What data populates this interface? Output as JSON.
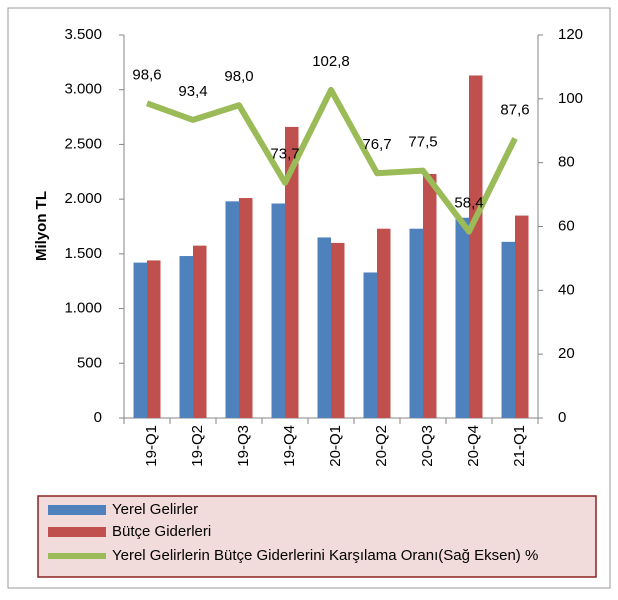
{
  "chart_data": {
    "type": "bar-line",
    "ylabel": "Milyon TL",
    "categories": [
      "19-Q1",
      "19-Q2",
      "19-Q3",
      "19-Q4",
      "20-Q1",
      "20-Q2",
      "20-Q3",
      "20-Q4",
      "21-Q1"
    ],
    "series": [
      {
        "name": "Yerel Gelirler",
        "type": "bar",
        "color": "#4f81bd",
        "values": [
          1420,
          1480,
          1980,
          1960,
          1650,
          1330,
          1730,
          1830,
          1610
        ]
      },
      {
        "name": "Bütçe Giderleri",
        "type": "bar",
        "color": "#c0504d",
        "values": [
          1440,
          1575,
          2010,
          2660,
          1600,
          1730,
          2230,
          3130,
          1850
        ]
      },
      {
        "name": "Yerel Gelirlerin Bütçe Giderlerini Karşılama Oranı(Sağ Eksen) %",
        "type": "line",
        "axis": "y2",
        "color": "#9bbb59",
        "values": [
          98.6,
          93.4,
          98.0,
          73.7,
          102.8,
          76.7,
          77.5,
          58.4,
          87.6
        ],
        "value_labels": [
          "98,6",
          "93,4",
          "98,0",
          "73,7",
          "102,8",
          "76,7",
          "77,5",
          "58,4",
          "87,6"
        ]
      }
    ],
    "ylim": [
      0,
      3500
    ],
    "yticks": [
      0,
      500,
      {
        "value": 1000,
        "label": "1.000"
      },
      {
        "value": 1500,
        "label": "1.500"
      },
      {
        "value": 2000,
        "label": "2.000"
      },
      {
        "value": 2500,
        "label": "2.500"
      },
      {
        "value": 3000,
        "label": "3.000"
      },
      {
        "value": 3500,
        "label": "3.500"
      }
    ],
    "y2lim": [
      0,
      120
    ],
    "y2ticks": [
      0,
      20,
      40,
      60,
      80,
      100,
      120
    ],
    "grid": false
  }
}
